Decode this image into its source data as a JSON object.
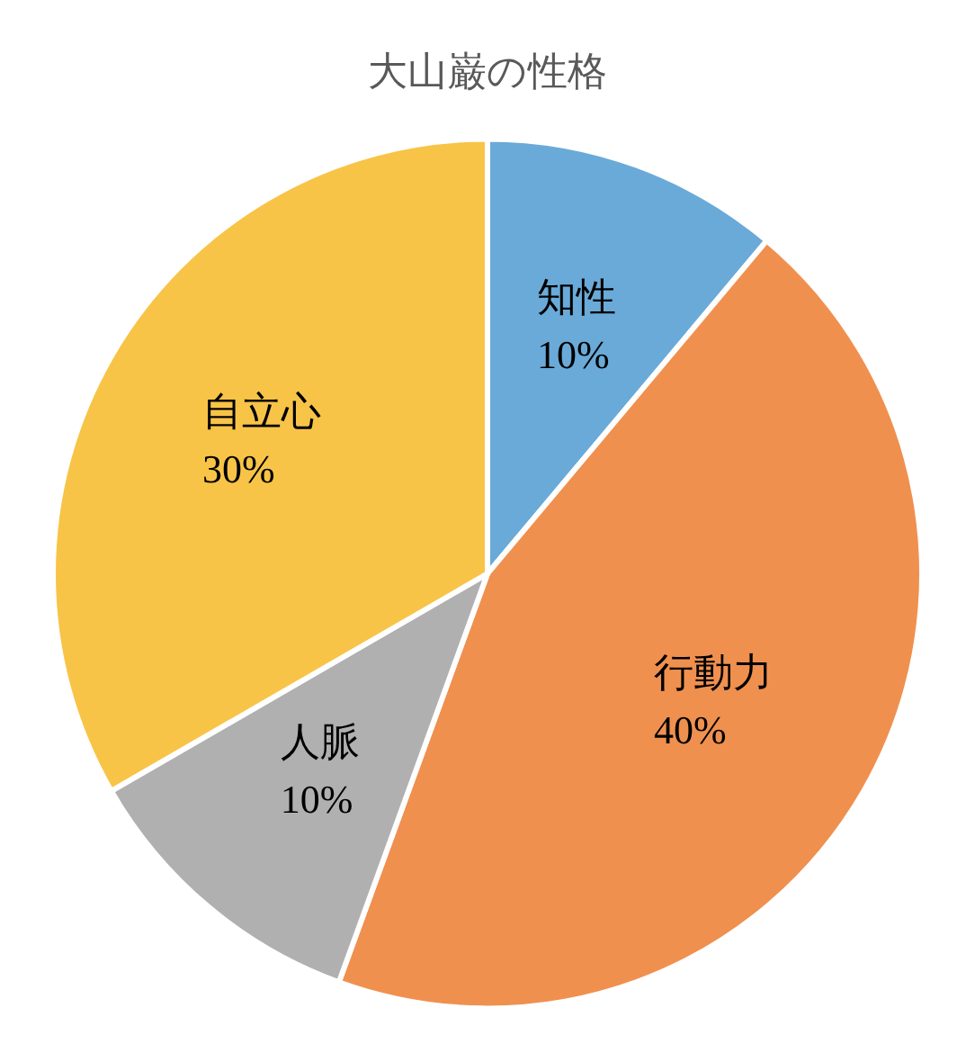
{
  "chart_data": {
    "type": "pie",
    "title": "大山巌の性格",
    "categories": [
      "知性",
      "行動力",
      "人脈",
      "自立心"
    ],
    "values": [
      10,
      40,
      10,
      30
    ],
    "colors": [
      "#6aaad8",
      "#f0904f",
      "#b0b0b0",
      "#f8c447"
    ],
    "value_labels": [
      "10%",
      "40%",
      "10%",
      "30%"
    ],
    "legend": false
  }
}
